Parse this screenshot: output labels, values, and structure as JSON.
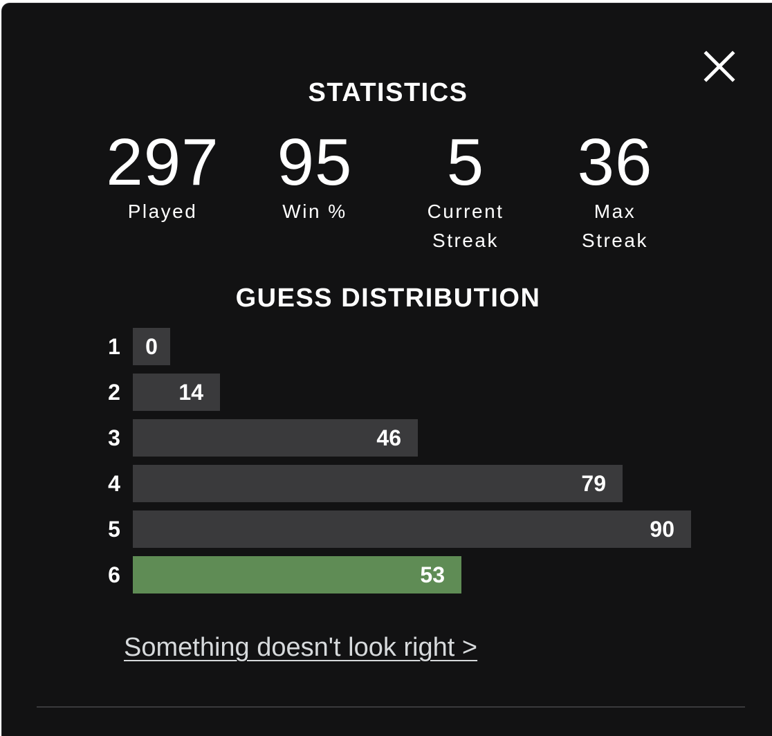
{
  "dialog": {
    "title": "STATISTICS",
    "close_icon": "close-icon"
  },
  "stats": [
    {
      "value": "297",
      "label_line1": "Played",
      "label_line2": ""
    },
    {
      "value": "95",
      "label_line1": "Win %",
      "label_line2": ""
    },
    {
      "value": "5",
      "label_line1": "Current",
      "label_line2": "Streak"
    },
    {
      "value": "36",
      "label_line1": "Max",
      "label_line2": "Streak"
    }
  ],
  "distribution": {
    "title": "GUESS DISTRIBUTION",
    "rows": [
      {
        "guess": "1",
        "count": 0,
        "label": "0",
        "highlight": false
      },
      {
        "guess": "2",
        "count": 14,
        "label": "14",
        "highlight": false
      },
      {
        "guess": "3",
        "count": 46,
        "label": "46",
        "highlight": false
      },
      {
        "guess": "4",
        "count": 79,
        "label": "79",
        "highlight": false
      },
      {
        "guess": "5",
        "count": 90,
        "label": "90",
        "highlight": false
      },
      {
        "guess": "6",
        "count": 53,
        "label": "53",
        "highlight": true
      }
    ],
    "bar_color": "#3a3a3c",
    "highlight_color": "#5f8c55"
  },
  "feedback_link": "Something doesn't look right >",
  "colors": {
    "background": "#121213",
    "text": "#ffffff"
  }
}
